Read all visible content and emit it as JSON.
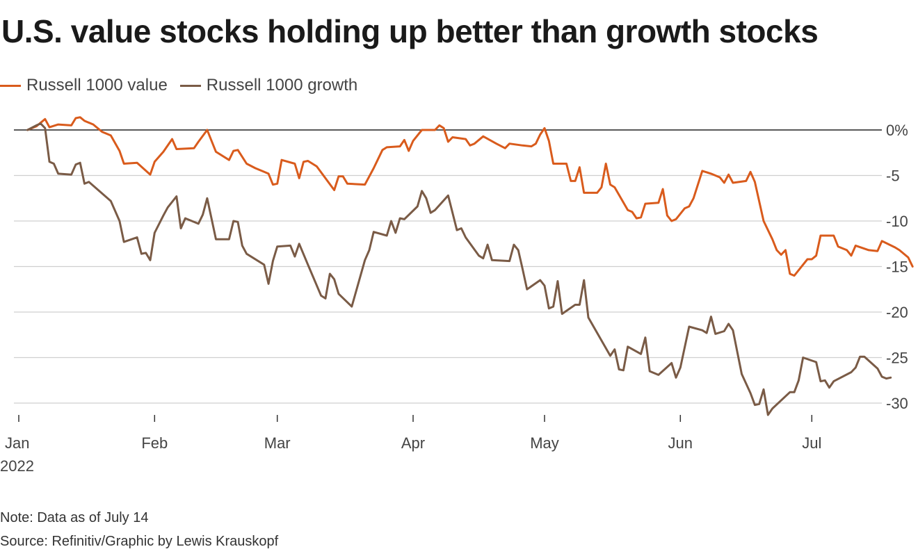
{
  "chart_data": {
    "type": "line",
    "title": "U.S. value stocks holding up better than growth stocks",
    "note": "Note: Data as of July 14",
    "source": "Source: Refinitiv/Graphic by Lewis Krauskopf",
    "ylim": [
      -32,
      3
    ],
    "y_ticks": [
      0,
      -5,
      -10,
      -15,
      -20,
      -25,
      -30
    ],
    "y_tick_labels": [
      "0%",
      "-5",
      "-10",
      "-15",
      "-20",
      "-25",
      "-30"
    ],
    "grid": true,
    "legend_position": "top-left",
    "x_start": "2022-01-03",
    "x_end": "2022-07-14",
    "x_ticks": [
      {
        "date": "2022-01-01",
        "label": "Jan",
        "sublabel": "2022"
      },
      {
        "date": "2022-02-01",
        "label": "Feb"
      },
      {
        "date": "2022-03-01",
        "label": "Mar"
      },
      {
        "date": "2022-04-01",
        "label": "Apr"
      },
      {
        "date": "2022-05-01",
        "label": "May"
      },
      {
        "date": "2022-06-01",
        "label": "Jun"
      },
      {
        "date": "2022-07-01",
        "label": "Jul"
      }
    ],
    "series": [
      {
        "name": "Russell 1000 value",
        "color": "#d95b1c",
        "points": [
          [
            "2022-01-03",
            0
          ],
          [
            "2022-01-05",
            0.4
          ],
          [
            "2022-01-07",
            1.2
          ],
          [
            "2022-01-08",
            0.3
          ],
          [
            "2022-01-10",
            0.6
          ],
          [
            "2022-01-13",
            0.5
          ],
          [
            "2022-01-14",
            1.3
          ],
          [
            "2022-01-15",
            1.4
          ],
          [
            "2022-01-16",
            1.0
          ],
          [
            "2022-01-18",
            0.6
          ],
          [
            "2022-01-20",
            -0.2
          ],
          [
            "2022-01-22",
            -0.6
          ],
          [
            "2022-01-24",
            -2.3
          ],
          [
            "2022-01-25",
            -3.7
          ],
          [
            "2022-01-28",
            -3.6
          ],
          [
            "2022-01-31",
            -4.9
          ],
          [
            "2022-02-01",
            -3.5
          ],
          [
            "2022-02-03",
            -2.4
          ],
          [
            "2022-02-05",
            -1.0
          ],
          [
            "2022-02-06",
            -2.1
          ],
          [
            "2022-02-10",
            -2.0
          ],
          [
            "2022-02-11",
            -1.3
          ],
          [
            "2022-02-13",
            0
          ],
          [
            "2022-02-15",
            -2.4
          ],
          [
            "2022-02-18",
            -3.3
          ],
          [
            "2022-02-19",
            -2.3
          ],
          [
            "2022-02-20",
            -2.2
          ],
          [
            "2022-02-22",
            -3.7
          ],
          [
            "2022-02-24",
            -4.2
          ],
          [
            "2022-02-27",
            -4.8
          ],
          [
            "2022-02-28",
            -6.0
          ],
          [
            "2022-03-01",
            -5.9
          ],
          [
            "2022-03-02",
            -3.3
          ],
          [
            "2022-03-05",
            -3.7
          ],
          [
            "2022-03-06",
            -5.3
          ],
          [
            "2022-03-07",
            -3.5
          ],
          [
            "2022-03-08",
            -3.4
          ],
          [
            "2022-03-10",
            -4.0
          ],
          [
            "2022-03-14",
            -6.6
          ],
          [
            "2022-03-15",
            -5.1
          ],
          [
            "2022-03-16",
            -5.1
          ],
          [
            "2022-03-17",
            -5.9
          ],
          [
            "2022-03-21",
            -6.0
          ],
          [
            "2022-03-23",
            -4.2
          ],
          [
            "2022-03-25",
            -2.2
          ],
          [
            "2022-03-26",
            -1.9
          ],
          [
            "2022-03-29",
            -1.8
          ],
          [
            "2022-03-30",
            -1.1
          ],
          [
            "2022-03-31",
            -2.3
          ],
          [
            "2022-04-01",
            -1.2
          ],
          [
            "2022-04-03",
            0
          ],
          [
            "2022-04-06",
            0
          ],
          [
            "2022-04-07",
            0.5
          ],
          [
            "2022-04-08",
            0.2
          ],
          [
            "2022-04-09",
            -1.3
          ],
          [
            "2022-04-10",
            -0.8
          ],
          [
            "2022-04-13",
            -1.0
          ],
          [
            "2022-04-14",
            -1.7
          ],
          [
            "2022-04-15",
            -1.5
          ],
          [
            "2022-04-17",
            -0.7
          ],
          [
            "2022-04-20",
            -1.5
          ],
          [
            "2022-04-22",
            -2.0
          ],
          [
            "2022-04-23",
            -1.5
          ],
          [
            "2022-04-26",
            -1.7
          ],
          [
            "2022-04-28",
            -1.8
          ],
          [
            "2022-04-29",
            -1.5
          ],
          [
            "2022-04-30",
            -0.5
          ],
          [
            "2022-05-01",
            0.2
          ],
          [
            "2022-05-02",
            -1.2
          ],
          [
            "2022-05-03",
            -3.7
          ],
          [
            "2022-05-06",
            -3.7
          ],
          [
            "2022-05-07",
            -5.6
          ],
          [
            "2022-05-08",
            -5.6
          ],
          [
            "2022-05-09",
            -4.1
          ],
          [
            "2022-05-10",
            -6.9
          ],
          [
            "2022-05-13",
            -6.9
          ],
          [
            "2022-05-14",
            -6.3
          ],
          [
            "2022-05-15",
            -3.7
          ],
          [
            "2022-05-16",
            -6.0
          ],
          [
            "2022-05-17",
            -6.3
          ],
          [
            "2022-05-20",
            -8.8
          ],
          [
            "2022-05-21",
            -9.0
          ],
          [
            "2022-05-22",
            -9.7
          ],
          [
            "2022-05-23",
            -9.6
          ],
          [
            "2022-05-24",
            -8.1
          ],
          [
            "2022-05-27",
            -8.0
          ],
          [
            "2022-05-28",
            -6.5
          ],
          [
            "2022-05-29",
            -9.4
          ],
          [
            "2022-05-30",
            -10.0
          ],
          [
            "2022-05-31",
            -9.8
          ],
          [
            "2022-06-02",
            -8.6
          ],
          [
            "2022-06-03",
            -8.4
          ],
          [
            "2022-06-04",
            -7.5
          ],
          [
            "2022-06-06",
            -4.5
          ],
          [
            "2022-06-08",
            -4.8
          ],
          [
            "2022-06-10",
            -5.2
          ],
          [
            "2022-06-11",
            -5.8
          ],
          [
            "2022-06-12",
            -4.9
          ],
          [
            "2022-06-13",
            -5.8
          ],
          [
            "2022-06-16",
            -5.6
          ],
          [
            "2022-06-17",
            -4.6
          ],
          [
            "2022-06-18",
            -5.7
          ],
          [
            "2022-06-20",
            -10.0
          ],
          [
            "2022-06-22",
            -12.0
          ],
          [
            "2022-06-23",
            -13.2
          ],
          [
            "2022-06-24",
            -13.7
          ],
          [
            "2022-06-25",
            -13.2
          ],
          [
            "2022-06-26",
            -15.8
          ],
          [
            "2022-06-27",
            -16.0
          ],
          [
            "2022-06-30",
            -14.2
          ],
          [
            "2022-07-01",
            -14.2
          ],
          [
            "2022-07-02",
            -13.8
          ],
          [
            "2022-07-03",
            -11.6
          ],
          [
            "2022-07-06",
            -11.6
          ],
          [
            "2022-07-07",
            -12.8
          ],
          [
            "2022-07-09",
            -13.2
          ],
          [
            "2022-07-10",
            -13.8
          ],
          [
            "2022-07-11",
            -12.7
          ],
          [
            "2022-07-14",
            -13.2
          ],
          [
            "2022-07-16",
            -13.3
          ],
          [
            "2022-07-17",
            -12.2
          ],
          [
            "2022-07-20",
            -12.9
          ],
          [
            "2022-07-21",
            -13.2
          ],
          [
            "2022-07-23",
            -14.0
          ],
          [
            "2022-07-24",
            -15.0
          ]
        ]
      },
      {
        "name": "Russell 1000 growth",
        "color": "#7a5b46",
        "points": [
          [
            "2022-01-03",
            0
          ],
          [
            "2022-01-05",
            0.5
          ],
          [
            "2022-01-06",
            0.7
          ],
          [
            "2022-01-07",
            0.2
          ],
          [
            "2022-01-08",
            -3.5
          ],
          [
            "2022-01-09",
            -3.7
          ],
          [
            "2022-01-10",
            -4.8
          ],
          [
            "2022-01-13",
            -4.9
          ],
          [
            "2022-01-14",
            -3.8
          ],
          [
            "2022-01-15",
            -3.6
          ],
          [
            "2022-01-16",
            -5.9
          ],
          [
            "2022-01-17",
            -5.7
          ],
          [
            "2022-01-22",
            -7.8
          ],
          [
            "2022-01-24",
            -10.0
          ],
          [
            "2022-01-25",
            -12.3
          ],
          [
            "2022-01-28",
            -11.8
          ],
          [
            "2022-01-29",
            -13.6
          ],
          [
            "2022-01-30",
            -13.5
          ],
          [
            "2022-01-31",
            -14.3
          ],
          [
            "2022-02-01",
            -11.3
          ],
          [
            "2022-02-03",
            -9.4
          ],
          [
            "2022-02-04",
            -8.5
          ],
          [
            "2022-02-06",
            -7.3
          ],
          [
            "2022-02-07",
            -10.8
          ],
          [
            "2022-02-08",
            -9.7
          ],
          [
            "2022-02-11",
            -10.3
          ],
          [
            "2022-02-12",
            -9.3
          ],
          [
            "2022-02-13",
            -7.5
          ],
          [
            "2022-02-15",
            -12.0
          ],
          [
            "2022-02-18",
            -12.0
          ],
          [
            "2022-02-19",
            -10.0
          ],
          [
            "2022-02-20",
            -10.1
          ],
          [
            "2022-02-21",
            -12.7
          ],
          [
            "2022-02-22",
            -13.6
          ],
          [
            "2022-02-26",
            -14.8
          ],
          [
            "2022-02-27",
            -16.9
          ],
          [
            "2022-02-28",
            -14.4
          ],
          [
            "2022-03-01",
            -12.8
          ],
          [
            "2022-03-04",
            -12.7
          ],
          [
            "2022-03-05",
            -13.9
          ],
          [
            "2022-03-06",
            -12.5
          ],
          [
            "2022-03-08",
            -14.8
          ],
          [
            "2022-03-11",
            -18.2
          ],
          [
            "2022-03-12",
            -18.5
          ],
          [
            "2022-03-13",
            -15.8
          ],
          [
            "2022-03-14",
            -16.4
          ],
          [
            "2022-03-15",
            -18.0
          ],
          [
            "2022-03-18",
            -19.4
          ],
          [
            "2022-03-21",
            -14.3
          ],
          [
            "2022-03-22",
            -13.2
          ],
          [
            "2022-03-23",
            -11.2
          ],
          [
            "2022-03-26",
            -11.6
          ],
          [
            "2022-03-27",
            -10.0
          ],
          [
            "2022-03-28",
            -11.3
          ],
          [
            "2022-03-29",
            -9.7
          ],
          [
            "2022-03-30",
            -9.8
          ],
          [
            "2022-04-02",
            -8.4
          ],
          [
            "2022-04-03",
            -6.7
          ],
          [
            "2022-04-04",
            -7.5
          ],
          [
            "2022-04-05",
            -9.1
          ],
          [
            "2022-04-06",
            -8.8
          ],
          [
            "2022-04-09",
            -7.2
          ],
          [
            "2022-04-11",
            -11.0
          ],
          [
            "2022-04-12",
            -10.8
          ],
          [
            "2022-04-13",
            -11.8
          ],
          [
            "2022-04-16",
            -13.8
          ],
          [
            "2022-04-17",
            -14.1
          ],
          [
            "2022-04-18",
            -12.6
          ],
          [
            "2022-04-19",
            -14.3
          ],
          [
            "2022-04-23",
            -14.4
          ],
          [
            "2022-04-24",
            -12.6
          ],
          [
            "2022-04-25",
            -13.2
          ],
          [
            "2022-04-26",
            -15.3
          ],
          [
            "2022-04-27",
            -17.5
          ],
          [
            "2022-04-30",
            -16.5
          ],
          [
            "2022-05-01",
            -17.1
          ],
          [
            "2022-05-02",
            -19.6
          ],
          [
            "2022-05-03",
            -19.4
          ],
          [
            "2022-05-04",
            -16.6
          ],
          [
            "2022-05-05",
            -20.2
          ],
          [
            "2022-05-08",
            -19.2
          ],
          [
            "2022-05-09",
            -19.2
          ],
          [
            "2022-05-10",
            -16.5
          ],
          [
            "2022-05-11",
            -20.6
          ],
          [
            "2022-05-16",
            -24.8
          ],
          [
            "2022-05-17",
            -24.1
          ],
          [
            "2022-05-18",
            -26.3
          ],
          [
            "2022-05-19",
            -26.4
          ],
          [
            "2022-05-20",
            -23.8
          ],
          [
            "2022-05-23",
            -24.6
          ],
          [
            "2022-05-24",
            -22.8
          ],
          [
            "2022-05-25",
            -26.5
          ],
          [
            "2022-05-27",
            -26.9
          ],
          [
            "2022-05-30",
            -25.6
          ],
          [
            "2022-05-31",
            -27.2
          ],
          [
            "2022-06-01",
            -26.1
          ],
          [
            "2022-06-03",
            -21.6
          ],
          [
            "2022-06-06",
            -22.0
          ],
          [
            "2022-06-07",
            -22.3
          ],
          [
            "2022-06-08",
            -20.5
          ],
          [
            "2022-06-09",
            -22.4
          ],
          [
            "2022-06-11",
            -22.1
          ],
          [
            "2022-06-12",
            -21.3
          ],
          [
            "2022-06-13",
            -22.0
          ],
          [
            "2022-06-15",
            -26.8
          ],
          [
            "2022-06-17",
            -28.9
          ],
          [
            "2022-06-18",
            -30.2
          ],
          [
            "2022-06-19",
            -30.1
          ],
          [
            "2022-06-20",
            -28.5
          ],
          [
            "2022-06-21",
            -31.3
          ],
          [
            "2022-06-22",
            -30.6
          ],
          [
            "2022-06-26",
            -28.8
          ],
          [
            "2022-06-27",
            -28.8
          ],
          [
            "2022-06-28",
            -27.5
          ],
          [
            "2022-06-29",
            -25.0
          ],
          [
            "2022-07-02",
            -25.5
          ],
          [
            "2022-07-03",
            -27.6
          ],
          [
            "2022-07-04",
            -27.5
          ],
          [
            "2022-07-05",
            -28.3
          ],
          [
            "2022-07-06",
            -27.6
          ],
          [
            "2022-07-10",
            -26.6
          ],
          [
            "2022-07-11",
            -26.1
          ],
          [
            "2022-07-12",
            -24.9
          ],
          [
            "2022-07-13",
            -24.9
          ],
          [
            "2022-07-16",
            -26.2
          ],
          [
            "2022-07-17",
            -27.1
          ],
          [
            "2022-07-18",
            -27.3
          ],
          [
            "2022-07-19",
            -27.2
          ]
        ]
      }
    ]
  }
}
